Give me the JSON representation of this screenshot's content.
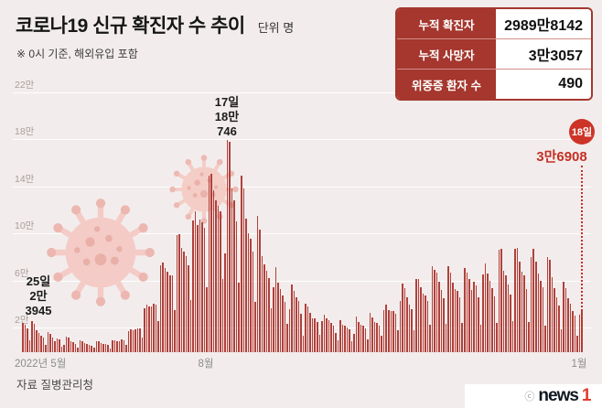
{
  "header": {
    "title": "코로나19 신규 확진자 수 추이",
    "unit": "단위 명",
    "subtitle": "※ 0시 기준, 해외유입 포함"
  },
  "stats_box": {
    "rows": [
      {
        "label": "누적 확진자",
        "value": "2989만8142"
      },
      {
        "label": "누적 사망자",
        "value": "3만3057"
      },
      {
        "label": "위중증 환자 수",
        "value": "490"
      }
    ]
  },
  "chart_data": {
    "type": "bar",
    "title": "코로나19 신규 확진자 수 추이",
    "unit": "명",
    "ylim": [
      0,
      220000
    ],
    "yticks": [
      {
        "label": "2만",
        "value": 20000
      },
      {
        "label": "6만",
        "value": 60000
      },
      {
        "label": "10만",
        "value": 100000
      },
      {
        "label": "14만",
        "value": 140000
      },
      {
        "label": "18만",
        "value": 180000
      },
      {
        "label": "22만",
        "value": 220000
      }
    ],
    "x_labels": {
      "start": "2022년 5월",
      "mid": "8월",
      "end": "1월"
    },
    "bar_color": "#b1403a",
    "accent_red": "#c43024",
    "annotations": {
      "may25": {
        "day": "25일",
        "line1": "2만",
        "line2": "3945",
        "value": 23945
      },
      "aug17": {
        "day": "17일",
        "line1": "18만",
        "line2": "746",
        "value": 180746
      },
      "jan18": {
        "day": "18일",
        "value_label": "3만6908",
        "value": 36908
      }
    },
    "values": [
      25125,
      23491,
      20496,
      9975,
      26344,
      23945,
      18816,
      16584,
      14226,
      12654,
      6139,
      17191,
      15789,
      12542,
      9528,
      12048,
      10715,
      5022,
      6172,
      13358,
      12161,
      9315,
      8442,
      7382,
      3828,
      9778,
      9435,
      7906,
      7198,
      6073,
      5791,
      3538,
      9310,
      8992,
      7497,
      7227,
      6790,
      6246,
      3423,
      9894,
      10463,
      9595,
      9528,
      10715,
      10059,
      6253,
      18147,
      19371,
      18511,
      19323,
      20410,
      20271,
      12693,
      37360,
      40266,
      39196,
      38882,
      41310,
      40342,
      26299,
      73582,
      76402,
      71170,
      68632,
      65433,
      65374,
      35883,
      99327,
      100285,
      88384,
      85320,
      82002,
      73589,
      44689,
      111789,
      119922,
      107894,
      112901,
      110666,
      105507,
      55292,
      149897,
      151792,
      137241,
      128714,
      124592,
      119603,
      62078,
      84128,
      180746,
      178574,
      138812,
      129411,
      110944,
      59046,
      150258,
      139339,
      113371,
      101140,
      96604,
      85295,
      43142,
      115638,
      103961,
      81573,
      74765,
      69410,
      63104,
      36938,
      55205,
      72646,
      59051,
      53459,
      47917,
      42724,
      24241,
      36265,
      57309,
      51874,
      46756,
      43449,
      33009,
      14168,
      41286,
      38960,
      33375,
      29108,
      28497,
      25792,
      14496,
      26160,
      31911,
      28875,
      27079,
      24605,
      22844,
      16423,
      10003,
      26957,
      23563,
      22298,
      20767,
      19407,
      8981,
      15466,
      30535,
      25431,
      23572,
      22778,
      20198,
      11040,
      33248,
      29503,
      25411,
      24751,
      22844,
      14302,
      35924,
      40785,
      35475,
      34978,
      34715,
      33009,
      18510,
      43759,
      58379,
      54766,
      46896,
      40153,
      36675,
      18510,
      62472,
      62273,
      55365,
      49943,
      48465,
      43434,
      23091,
      72883,
      70324,
      67840,
      59871,
      52987,
      46011,
      23765,
      72873,
      67415,
      59047,
      53698,
      52437,
      47029,
      24550,
      71476,
      67374,
      62266,
      52987,
      60252,
      57079,
      46564,
      23677,
      66002,
      75744,
      67105,
      60261,
      54319,
      47279,
      24976,
      86852,
      88172,
      68960,
      65207,
      57537,
      48868,
      26622,
      87559,
      88328,
      76765,
      68168,
      65661,
      54037,
      25545,
      81056,
      87517,
      76765,
      67073,
      60379,
      55354,
      22722,
      81056,
      78575,
      64105,
      54343,
      46766,
      40019,
      19103,
      60021,
      54315,
      45795,
      41103,
      35187,
      31303,
      14144,
      31603,
      36908
    ]
  },
  "footer": {
    "source": "자료 질병관리청",
    "copyright": "ⓒ",
    "brand": "news",
    "brand_suffix": "1"
  }
}
